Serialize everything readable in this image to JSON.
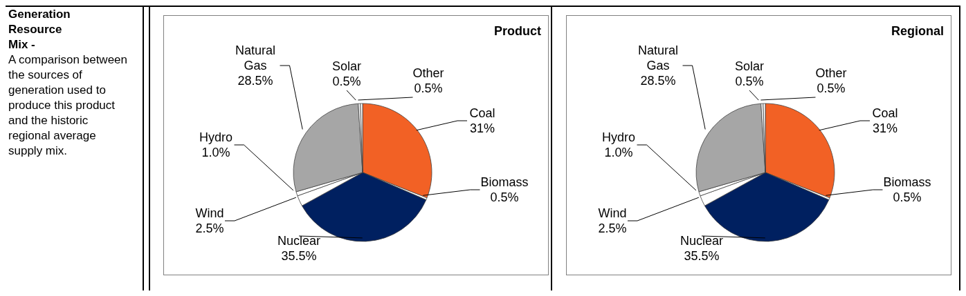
{
  "chart_data": [
    {
      "type": "other",
      "title": "Generation Resource Mix -",
      "annotations": [
        "A comparison between the sources of generation used to produce this product and the historic regional average supply mix."
      ]
    },
    {
      "type": "pie",
      "title": "Product",
      "categories": [
        "Coal",
        "Biomass",
        "Nuclear",
        "Wind",
        "Hydro",
        "Natural Gas",
        "Solar",
        "Other"
      ],
      "values": [
        31,
        0.5,
        35.5,
        2.5,
        1.0,
        28.5,
        0.5,
        0.5
      ],
      "value_labels": [
        "31%",
        "0.5%",
        "35.5%",
        "2.5%",
        "1.0%",
        "28.5%",
        "0.5%",
        "0.5%"
      ],
      "colors": [
        "#f26125",
        "#ffffff",
        "#002060",
        "#ffffff",
        "#ffffff",
        "#a6a6a6",
        "#ffffff",
        "#ffffff"
      ]
    },
    {
      "type": "pie",
      "title": "Regional",
      "categories": [
        "Coal",
        "Biomass",
        "Nuclear",
        "Wind",
        "Hydro",
        "Natural Gas",
        "Solar",
        "Other"
      ],
      "values": [
        31,
        0.5,
        35.5,
        2.5,
        1.0,
        28.5,
        0.5,
        0.5
      ],
      "value_labels": [
        "31%",
        "0.5%",
        "35.5%",
        "2.5%",
        "1.0%",
        "28.5%",
        "0.5%",
        "0.5%"
      ],
      "colors": [
        "#f26125",
        "#ffffff",
        "#002060",
        "#ffffff",
        "#ffffff",
        "#a6a6a6",
        "#ffffff",
        "#ffffff"
      ]
    }
  ]
}
